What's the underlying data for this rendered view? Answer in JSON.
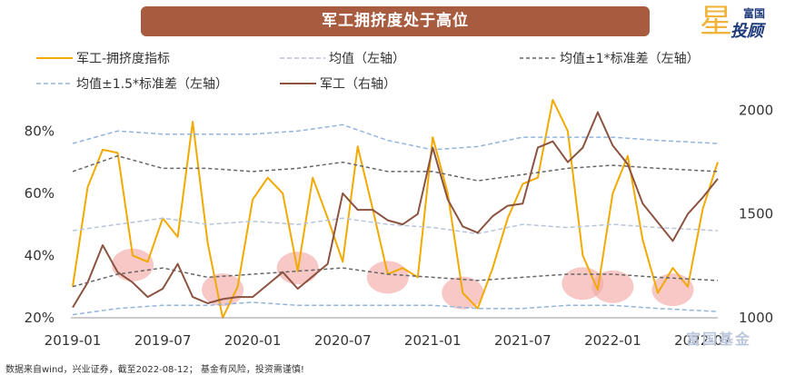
{
  "title": "军工拥挤度处于高位",
  "logo": {
    "line1": "富国",
    "line2": "投顾",
    "star": "星"
  },
  "watermark": "富国基金",
  "footnote": "数据来自wind，兴业证券，截至2022-08-12； 基金有风险，投资需谨慎!",
  "colors": {
    "crowd": "#f2a900",
    "mean": "#b8c4d8",
    "sd1": "#666666",
    "sd15": "#93b5dc",
    "army": "#8b5340",
    "highlight": "#f2aaa8",
    "banner": "#a85c3f"
  },
  "chart_data": {
    "type": "line",
    "title": "军工拥挤度处于高位",
    "x_ticks": [
      "2019-01",
      "2019-07",
      "2020-01",
      "2020-07",
      "2021-01",
      "2021-07",
      "2022-01",
      "2022-07"
    ],
    "x_range": [
      "2019-01",
      "2022-08"
    ],
    "y_left": {
      "ticks": [
        "20%",
        "40%",
        "60%",
        "80%"
      ],
      "range": [
        0.2,
        0.9
      ]
    },
    "y_right": {
      "ticks": [
        "1000",
        "1500",
        "2000"
      ],
      "range": [
        1000,
        2050
      ]
    },
    "legend_position": "top",
    "series": [
      {
        "name": "军工-拥挤度指标",
        "axis": "left",
        "style": "solid",
        "x": [
          "2019-01",
          "2019-02",
          "2019-03",
          "2019-04",
          "2019-05",
          "2019-06",
          "2019-07",
          "2019-08",
          "2019-09",
          "2019-10",
          "2019-11",
          "2019-12",
          "2020-01",
          "2020-02",
          "2020-03",
          "2020-04",
          "2020-05",
          "2020-06",
          "2020-07",
          "2020-08",
          "2020-09",
          "2020-10",
          "2020-11",
          "2020-12",
          "2021-01",
          "2021-02",
          "2021-03",
          "2021-04",
          "2021-05",
          "2021-06",
          "2021-07",
          "2021-08",
          "2021-09",
          "2021-10",
          "2021-11",
          "2021-12",
          "2022-01",
          "2022-02",
          "2022-03",
          "2022-04",
          "2022-05",
          "2022-06",
          "2022-07",
          "2022-08"
        ],
        "values": [
          0.3,
          0.62,
          0.74,
          0.73,
          0.4,
          0.38,
          0.52,
          0.46,
          0.83,
          0.44,
          0.2,
          0.3,
          0.58,
          0.65,
          0.6,
          0.35,
          0.65,
          0.52,
          0.38,
          0.75,
          0.55,
          0.34,
          0.36,
          0.33,
          0.78,
          0.6,
          0.28,
          0.23,
          0.36,
          0.52,
          0.63,
          0.65,
          0.9,
          0.8,
          0.4,
          0.29,
          0.6,
          0.72,
          0.45,
          0.28,
          0.36,
          0.3,
          0.55,
          0.7
        ]
      },
      {
        "name": "均值（左轴）",
        "axis": "left",
        "style": "dash-light",
        "x": [
          "2019-01",
          "2019-04",
          "2019-07",
          "2019-10",
          "2020-01",
          "2020-04",
          "2020-07",
          "2020-10",
          "2021-01",
          "2021-04",
          "2021-07",
          "2021-10",
          "2022-01",
          "2022-04",
          "2022-08"
        ],
        "values": [
          0.48,
          0.5,
          0.52,
          0.5,
          0.51,
          0.5,
          0.52,
          0.5,
          0.49,
          0.47,
          0.5,
          0.49,
          0.5,
          0.49,
          0.48
        ]
      },
      {
        "name": "均值±1*标准差（左轴）",
        "axis": "left",
        "style": "dash-dark",
        "x": [
          "2019-01",
          "2019-04",
          "2019-07",
          "2019-10",
          "2020-01",
          "2020-04",
          "2020-07",
          "2020-10",
          "2021-01",
          "2021-04",
          "2021-07",
          "2021-10",
          "2022-01",
          "2022-04",
          "2022-08"
        ],
        "values": [
          0.67,
          0.72,
          0.68,
          0.68,
          0.67,
          0.68,
          0.7,
          0.67,
          0.67,
          0.64,
          0.66,
          0.68,
          0.69,
          0.68,
          0.67
        ]
      },
      {
        "name": "均值±1*标准差（左轴）",
        "axis": "left",
        "style": "dash-dark",
        "legend": false,
        "x": [
          "2019-01",
          "2019-04",
          "2019-07",
          "2019-10",
          "2020-01",
          "2020-04",
          "2020-07",
          "2020-10",
          "2021-01",
          "2021-04",
          "2021-07",
          "2021-10",
          "2022-01",
          "2022-04",
          "2022-08"
        ],
        "values": [
          0.3,
          0.34,
          0.36,
          0.33,
          0.34,
          0.35,
          0.36,
          0.34,
          0.33,
          0.32,
          0.33,
          0.34,
          0.34,
          0.33,
          0.32
        ]
      },
      {
        "name": "均值±1.5*标准差（左轴）",
        "axis": "left",
        "style": "dash-blue",
        "x": [
          "2019-01",
          "2019-04",
          "2019-07",
          "2019-10",
          "2020-01",
          "2020-04",
          "2020-07",
          "2020-10",
          "2021-01",
          "2021-04",
          "2021-07",
          "2021-10",
          "2022-01",
          "2022-04",
          "2022-08"
        ],
        "values": [
          0.76,
          0.8,
          0.79,
          0.79,
          0.79,
          0.8,
          0.82,
          0.77,
          0.74,
          0.75,
          0.78,
          0.78,
          0.78,
          0.77,
          0.76
        ]
      },
      {
        "name": "均值±1.5*标准差（左轴）",
        "axis": "left",
        "style": "dash-blue",
        "legend": false,
        "x": [
          "2019-01",
          "2019-04",
          "2019-07",
          "2019-10",
          "2020-01",
          "2020-04",
          "2020-07",
          "2020-10",
          "2021-01",
          "2021-04",
          "2021-07",
          "2021-10",
          "2022-01",
          "2022-04",
          "2022-08"
        ],
        "values": [
          0.21,
          0.23,
          0.24,
          0.24,
          0.25,
          0.24,
          0.24,
          0.24,
          0.24,
          0.23,
          0.23,
          0.24,
          0.24,
          0.23,
          0.22
        ]
      },
      {
        "name": "军工（右轴）",
        "axis": "right",
        "style": "solid",
        "x": [
          "2019-01",
          "2019-02",
          "2019-03",
          "2019-04",
          "2019-05",
          "2019-06",
          "2019-07",
          "2019-08",
          "2019-09",
          "2019-10",
          "2019-11",
          "2019-12",
          "2020-01",
          "2020-02",
          "2020-03",
          "2020-04",
          "2020-05",
          "2020-06",
          "2020-07",
          "2020-08",
          "2020-09",
          "2020-10",
          "2020-11",
          "2020-12",
          "2021-01",
          "2021-02",
          "2021-03",
          "2021-04",
          "2021-05",
          "2021-06",
          "2021-07",
          "2021-08",
          "2021-09",
          "2021-10",
          "2021-11",
          "2021-12",
          "2022-01",
          "2022-02",
          "2022-03",
          "2022-04",
          "2022-05",
          "2022-06",
          "2022-07",
          "2022-08"
        ],
        "values": [
          1050,
          1170,
          1350,
          1220,
          1170,
          1100,
          1140,
          1260,
          1100,
          1070,
          1090,
          1100,
          1100,
          1160,
          1220,
          1140,
          1200,
          1260,
          1600,
          1520,
          1520,
          1470,
          1450,
          1500,
          1820,
          1570,
          1440,
          1410,
          1490,
          1540,
          1550,
          1820,
          1850,
          1750,
          1820,
          1990,
          1830,
          1740,
          1550,
          1460,
          1370,
          1500,
          1580,
          1670
        ]
      }
    ],
    "highlights": [
      {
        "x": "2019-05",
        "y": 0.37
      },
      {
        "x": "2019-11",
        "y": 0.29
      },
      {
        "x": "2020-04",
        "y": 0.36
      },
      {
        "x": "2020-10",
        "y": 0.33
      },
      {
        "x": "2021-03",
        "y": 0.28
      },
      {
        "x": "2021-11",
        "y": 0.31
      },
      {
        "x": "2022-01",
        "y": 0.3
      },
      {
        "x": "2022-05",
        "y": 0.29
      }
    ]
  }
}
